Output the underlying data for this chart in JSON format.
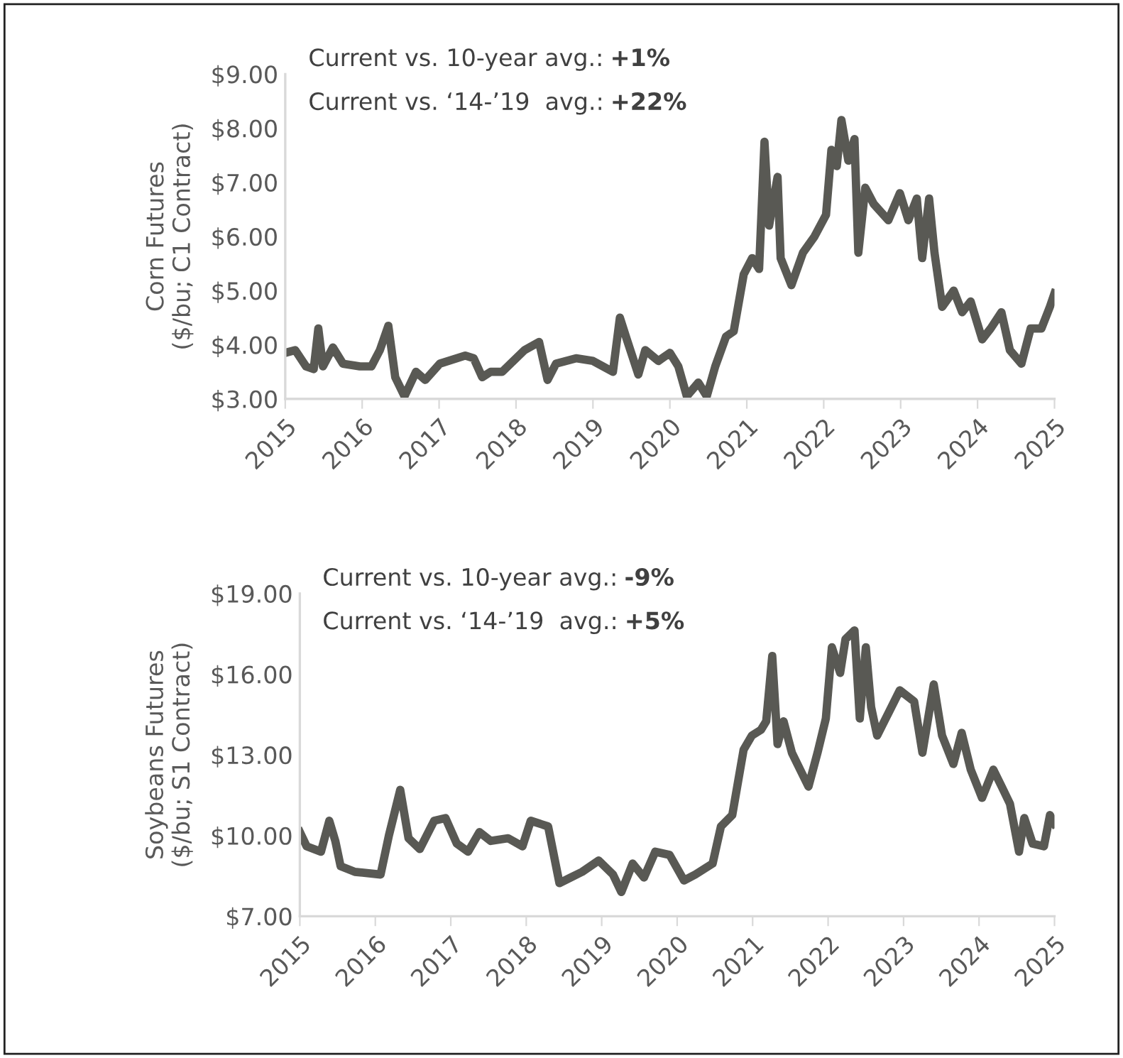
{
  "chart_data": [
    {
      "type": "line",
      "ylabel": "Corn Futures\n($/bu; C1 Contract)",
      "annotations": [
        "Current vs. 10-year avg.: +1%",
        "Current vs. ‘14-’19  avg.: +22%"
      ],
      "xlim": [
        2015,
        2025
      ],
      "xticks": [
        2015,
        2016,
        2017,
        2018,
        2019,
        2020,
        2021,
        2022,
        2023,
        2024,
        2025
      ],
      "ylim": [
        3,
        9
      ],
      "yticks": [
        {
          "value": 3,
          "label": "$3.00"
        },
        {
          "value": 4,
          "label": "$4.00"
        },
        {
          "value": 5,
          "label": "$5.00"
        },
        {
          "value": 6,
          "label": "$6.00"
        },
        {
          "value": 7,
          "label": "$7.00"
        },
        {
          "value": 8,
          "label": "$8.00"
        },
        {
          "value": 9,
          "label": "$9.00"
        }
      ],
      "grid": false,
      "legend": false,
      "series": [
        {
          "color": "#595954",
          "x": [
            2015.0,
            2015.13,
            2015.27,
            2015.37,
            2015.43,
            2015.49,
            2015.62,
            2015.75,
            2015.97,
            2016.12,
            2016.23,
            2016.34,
            2016.43,
            2016.55,
            2016.7,
            2016.82,
            2017.01,
            2017.34,
            2017.45,
            2017.56,
            2017.67,
            2017.82,
            2018.11,
            2018.3,
            2018.41,
            2018.52,
            2018.78,
            2019.0,
            2019.26,
            2019.35,
            2019.44,
            2019.59,
            2019.68,
            2019.85,
            2020.0,
            2020.11,
            2020.22,
            2020.37,
            2020.48,
            2020.59,
            2020.73,
            2020.83,
            2020.96,
            2021.07,
            2021.16,
            2021.23,
            2021.29,
            2021.4,
            2021.44,
            2021.58,
            2021.73,
            2021.88,
            2022.03,
            2022.1,
            2022.17,
            2022.23,
            2022.32,
            2022.4,
            2022.45,
            2022.54,
            2022.65,
            2022.84,
            2022.99,
            2023.1,
            2023.21,
            2023.28,
            2023.37,
            2023.44,
            2023.54,
            2023.69,
            2023.8,
            2023.91,
            2024.06,
            2024.17,
            2024.31,
            2024.42,
            2024.57,
            2024.69,
            2024.83,
            2024.94,
            2025.0
          ],
          "values": [
            3.85,
            3.9,
            3.6,
            3.55,
            4.3,
            3.6,
            3.95,
            3.65,
            3.6,
            3.6,
            3.9,
            4.35,
            3.4,
            3.05,
            3.5,
            3.35,
            3.65,
            3.8,
            3.75,
            3.4,
            3.5,
            3.5,
            3.9,
            4.05,
            3.35,
            3.65,
            3.75,
            3.7,
            3.5,
            4.5,
            4.1,
            3.45,
            3.9,
            3.7,
            3.85,
            3.6,
            3.05,
            3.3,
            3.05,
            3.6,
            4.15,
            4.25,
            5.3,
            5.6,
            5.4,
            7.75,
            6.2,
            7.1,
            5.6,
            5.1,
            5.7,
            6.0,
            6.4,
            7.6,
            7.3,
            8.15,
            7.4,
            7.8,
            5.7,
            6.9,
            6.6,
            6.3,
            6.8,
            6.3,
            6.7,
            5.6,
            6.7,
            5.7,
            4.7,
            5.0,
            4.6,
            4.8,
            4.1,
            4.3,
            4.6,
            3.9,
            3.65,
            4.3,
            4.3,
            4.7,
            4.95
          ]
        }
      ]
    },
    {
      "type": "line",
      "ylabel": "Soybeans Futures\n($/bu; S1 Contract)",
      "annotations": [
        "Current vs. 10-year avg.: -9%",
        "Current vs. ‘14-’19  avg.: +5%"
      ],
      "xlim": [
        2015,
        2025
      ],
      "xticks": [
        2015,
        2016,
        2017,
        2018,
        2019,
        2020,
        2021,
        2022,
        2023,
        2024,
        2025
      ],
      "ylim": [
        7,
        19
      ],
      "yticks": [
        {
          "value": 7,
          "label": "$7.00"
        },
        {
          "value": 10,
          "label": "$10.00"
        },
        {
          "value": 13,
          "label": "$13.00"
        },
        {
          "value": 16,
          "label": "$16.00"
        },
        {
          "value": 19,
          "label": "$19.00"
        }
      ],
      "grid": false,
      "legend": false,
      "series": [
        {
          "color": "#595954",
          "x": [
            2015.0,
            2015.09,
            2015.28,
            2015.39,
            2015.47,
            2015.54,
            2015.73,
            2016.07,
            2016.18,
            2016.33,
            2016.44,
            2016.59,
            2016.78,
            2016.93,
            2017.08,
            2017.23,
            2017.38,
            2017.53,
            2017.76,
            2017.95,
            2018.06,
            2018.29,
            2018.44,
            2018.59,
            2018.74,
            2018.96,
            2019.15,
            2019.26,
            2019.41,
            2019.56,
            2019.71,
            2019.9,
            2020.09,
            2020.24,
            2020.47,
            2020.58,
            2020.73,
            2020.88,
            2020.99,
            2021.11,
            2021.18,
            2021.26,
            2021.33,
            2021.41,
            2021.52,
            2021.63,
            2021.74,
            2021.86,
            2021.97,
            2022.05,
            2022.16,
            2022.23,
            2022.35,
            2022.42,
            2022.5,
            2022.57,
            2022.65,
            2022.8,
            2022.95,
            2023.14,
            2023.25,
            2023.4,
            2023.51,
            2023.66,
            2023.77,
            2023.89,
            2024.04,
            2024.19,
            2024.3,
            2024.41,
            2024.53,
            2024.6,
            2024.71,
            2024.86,
            2024.94,
            2025.0
          ],
          "values": [
            10.13,
            9.6,
            9.4,
            10.55,
            9.8,
            8.86,
            8.65,
            8.55,
            10.0,
            11.7,
            9.9,
            9.5,
            10.55,
            10.65,
            9.7,
            9.4,
            10.13,
            9.8,
            9.9,
            9.6,
            10.55,
            10.34,
            8.23,
            8.44,
            8.65,
            9.07,
            8.55,
            7.9,
            8.96,
            8.44,
            9.4,
            9.28,
            8.33,
            8.55,
            8.96,
            10.34,
            10.76,
            13.19,
            13.72,
            13.93,
            14.25,
            16.68,
            13.4,
            14.25,
            13.08,
            12.45,
            11.82,
            13.08,
            14.35,
            17.0,
            16.05,
            17.3,
            17.63,
            14.35,
            17.0,
            14.78,
            13.72,
            14.56,
            15.4,
            14.99,
            13.08,
            15.62,
            13.72,
            12.66,
            13.82,
            12.45,
            11.4,
            12.45,
            11.82,
            11.18,
            9.4,
            10.65,
            9.7,
            9.6,
            10.76,
            10.44
          ]
        }
      ]
    }
  ]
}
